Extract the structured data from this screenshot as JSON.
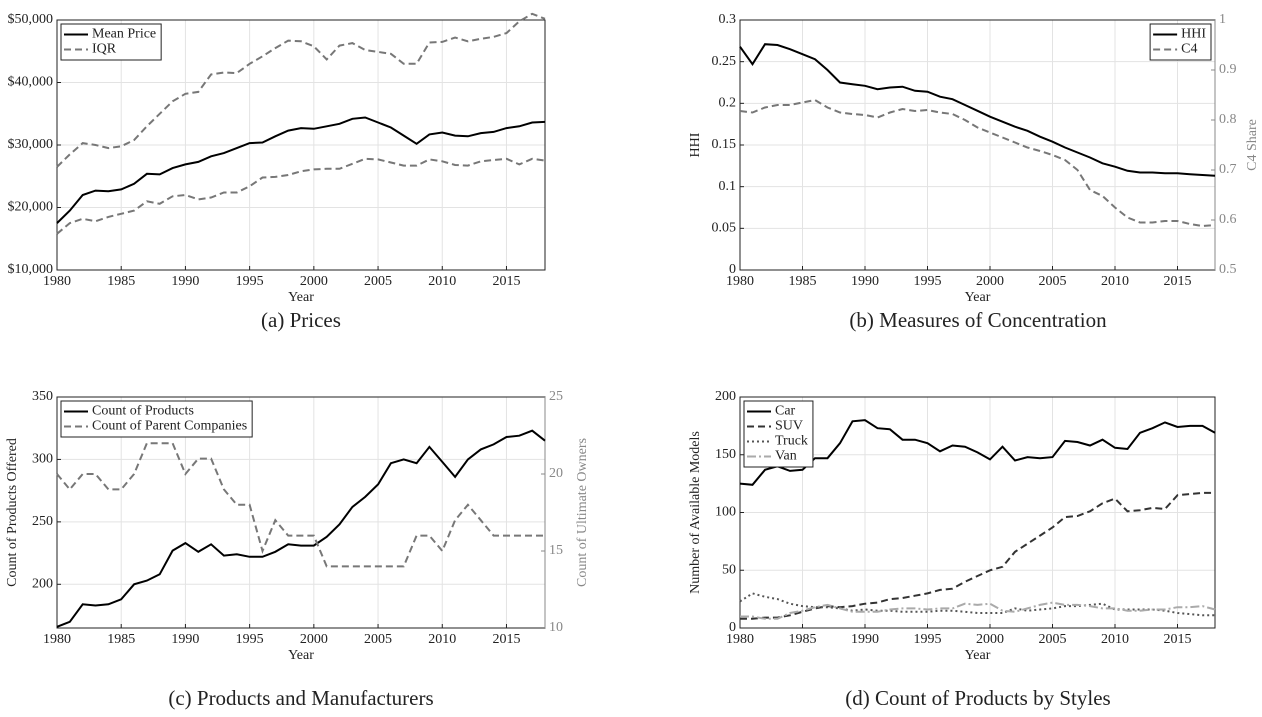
{
  "chart_data": [
    {
      "type": "line",
      "caption": "(a) Prices",
      "xlabel": "Year",
      "grid": true,
      "legend": "upper left",
      "x": [
        1980,
        1981,
        1982,
        1983,
        1984,
        1985,
        1986,
        1987,
        1988,
        1989,
        1990,
        1991,
        1992,
        1993,
        1994,
        1995,
        1996,
        1997,
        1998,
        1999,
        2000,
        2001,
        2002,
        2003,
        2004,
        2005,
        2006,
        2007,
        2008,
        2009,
        2010,
        2011,
        2012,
        2013,
        2014,
        2015,
        2016,
        2017,
        2018
      ],
      "xlim": [
        1980,
        2018
      ],
      "xticks": [
        1980,
        1985,
        1990,
        1995,
        2000,
        2005,
        2010,
        2015
      ],
      "ylim": [
        10000,
        50000
      ],
      "yticks": [
        {
          "value": 10000,
          "label": "$10,000"
        },
        {
          "value": 20000,
          "label": "$20,000"
        },
        {
          "value": 30000,
          "label": "$30,000"
        },
        {
          "value": 40000,
          "label": "$40,000"
        },
        {
          "value": 50000,
          "label": "$50,000"
        }
      ],
      "series": [
        {
          "name": "Mean Price",
          "color": "#000000",
          "style": "solid",
          "values": [
            17500,
            19500,
            22000,
            22700,
            22600,
            22900,
            23800,
            25400,
            25300,
            26300,
            26900,
            27300,
            28200,
            28700,
            29500,
            30300,
            30400,
            31400,
            32300,
            32700,
            32600,
            33000,
            33400,
            34200,
            34400,
            33600,
            32800,
            31500,
            30200,
            31700,
            32000,
            31500,
            31400,
            31900,
            32100,
            32700,
            33000,
            33600,
            33700
          ]
        },
        {
          "name": "IQR",
          "color": "#777777",
          "style": "dashed",
          "upper": [
            26500,
            28500,
            30300,
            30000,
            29500,
            29800,
            30800,
            33000,
            35000,
            37000,
            38200,
            38500,
            41300,
            41600,
            41500,
            43000,
            44200,
            45500,
            46700,
            46600,
            45800,
            43700,
            45900,
            46300,
            45200,
            44900,
            44600,
            43000,
            43000,
            46400,
            46500,
            47200,
            46600,
            47000,
            47300,
            47900,
            49800,
            51000,
            50200
          ],
          "lower": [
            15800,
            17500,
            18200,
            17800,
            18500,
            19000,
            19500,
            21000,
            20600,
            21800,
            22000,
            21300,
            21600,
            22400,
            22400,
            23400,
            24800,
            24900,
            25200,
            25800,
            26100,
            26200,
            26200,
            27000,
            27800,
            27700,
            27200,
            26700,
            26700,
            27700,
            27400,
            26800,
            26700,
            27400,
            27600,
            27800,
            26900,
            27800,
            27500
          ]
        }
      ]
    },
    {
      "type": "line",
      "caption": "(b) Measures of Concentration",
      "xlabel": "Year",
      "ylabel": "HHI",
      "y2label": "C4 Share",
      "grid": true,
      "legend": "upper right",
      "x": [
        1980,
        1981,
        1982,
        1983,
        1984,
        1985,
        1986,
        1987,
        1988,
        1989,
        1990,
        1991,
        1992,
        1993,
        1994,
        1995,
        1996,
        1997,
        1998,
        1999,
        2000,
        2001,
        2002,
        2003,
        2004,
        2005,
        2006,
        2007,
        2008,
        2009,
        2010,
        2011,
        2012,
        2013,
        2014,
        2015,
        2016,
        2017,
        2018
      ],
      "xlim": [
        1980,
        2018
      ],
      "xticks": [
        1980,
        1985,
        1990,
        1995,
        2000,
        2005,
        2010,
        2015
      ],
      "ylim": [
        0,
        0.3
      ],
      "yticks": [
        0,
        0.05,
        0.1,
        0.15,
        0.2,
        0.25,
        0.3
      ],
      "y2lim": [
        0.5,
        1
      ],
      "y2ticks": [
        0.5,
        0.6,
        0.7,
        0.8,
        0.9,
        1
      ],
      "series": [
        {
          "name": "HHI",
          "color": "#000000",
          "style": "solid",
          "values": [
            0.268,
            0.247,
            0.271,
            0.27,
            0.265,
            0.259,
            0.253,
            0.24,
            0.225,
            0.223,
            0.221,
            0.217,
            0.219,
            0.22,
            0.215,
            0.214,
            0.208,
            0.205,
            0.198,
            0.191,
            0.184,
            0.178,
            0.172,
            0.167,
            0.16,
            0.154,
            0.147,
            0.141,
            0.135,
            0.128,
            0.124,
            0.119,
            0.117,
            0.117,
            0.116,
            0.116,
            0.115,
            0.114,
            0.113
          ]
        },
        {
          "name": "C4",
          "color": "#777777",
          "style": "dashed",
          "axis": "y2",
          "values": [
            0.818,
            0.815,
            0.825,
            0.83,
            0.83,
            0.835,
            0.84,
            0.825,
            0.815,
            0.812,
            0.81,
            0.805,
            0.815,
            0.822,
            0.818,
            0.82,
            0.815,
            0.812,
            0.8,
            0.785,
            0.775,
            0.765,
            0.755,
            0.745,
            0.738,
            0.73,
            0.72,
            0.7,
            0.66,
            0.648,
            0.625,
            0.605,
            0.595,
            0.595,
            0.598,
            0.598,
            0.592,
            0.588,
            0.59
          ]
        }
      ]
    },
    {
      "type": "line",
      "caption": "(c) Products and Manufacturers",
      "xlabel": "Year",
      "ylabel": "Count of Products Offered",
      "y2label": "Count of Ultimate Owners",
      "grid": true,
      "legend": "upper left",
      "x": [
        1980,
        1981,
        1982,
        1983,
        1984,
        1985,
        1986,
        1987,
        1988,
        1989,
        1990,
        1991,
        1992,
        1993,
        1994,
        1995,
        1996,
        1997,
        1998,
        1999,
        2000,
        2001,
        2002,
        2003,
        2004,
        2005,
        2006,
        2007,
        2008,
        2009,
        2010,
        2011,
        2012,
        2013,
        2014,
        2015,
        2016,
        2017,
        2018
      ],
      "xlim": [
        1980,
        2018
      ],
      "xticks": [
        1980,
        1985,
        1990,
        1995,
        2000,
        2005,
        2010,
        2015
      ],
      "ylim": [
        165,
        350
      ],
      "yticks": [
        200,
        250,
        300,
        350
      ],
      "y2lim": [
        10,
        25
      ],
      "y2ticks": [
        10,
        15,
        20,
        25
      ],
      "series": [
        {
          "name": "Count of Products",
          "color": "#000000",
          "style": "solid",
          "values": [
            166,
            170,
            184,
            183,
            184,
            188,
            200,
            203,
            208,
            227,
            233,
            226,
            232,
            223,
            224,
            222,
            222,
            226,
            232,
            231,
            231,
            238,
            248,
            262,
            270,
            280,
            297,
            300,
            297,
            310,
            298,
            286,
            300,
            308,
            312,
            318,
            319,
            323,
            315
          ]
        },
        {
          "name": "Count of Parent Companies",
          "color": "#777777",
          "style": "dashed",
          "axis": "y2",
          "values": [
            20,
            19,
            20,
            20,
            19,
            19,
            20,
            22,
            22,
            22,
            20,
            21,
            21,
            19,
            18,
            18,
            15,
            17,
            16,
            16,
            16,
            14,
            14,
            14,
            14,
            14,
            14,
            14,
            16,
            16,
            15,
            17,
            18,
            17,
            16,
            16,
            16,
            16,
            16
          ]
        }
      ]
    },
    {
      "type": "line",
      "caption": "(d) Count of Products by Styles",
      "xlabel": "Year",
      "ylabel": "Number of Available Models",
      "grid": true,
      "legend": "upper left",
      "x": [
        1980,
        1981,
        1982,
        1983,
        1984,
        1985,
        1986,
        1987,
        1988,
        1989,
        1990,
        1991,
        1992,
        1993,
        1994,
        1995,
        1996,
        1997,
        1998,
        1999,
        2000,
        2001,
        2002,
        2003,
        2004,
        2005,
        2006,
        2007,
        2008,
        2009,
        2010,
        2011,
        2012,
        2013,
        2014,
        2015,
        2016,
        2017,
        2018
      ],
      "xlim": [
        1980,
        2018
      ],
      "xticks": [
        1980,
        1985,
        1990,
        1995,
        2000,
        2005,
        2010,
        2015
      ],
      "ylim": [
        0,
        200
      ],
      "yticks": [
        0,
        50,
        100,
        150,
        200
      ],
      "series": [
        {
          "name": "Car",
          "color": "#000000",
          "style": "solid",
          "values": [
            125,
            124,
            137,
            140,
            136,
            137,
            147,
            147,
            160,
            179,
            180,
            173,
            172,
            163,
            163,
            160,
            153,
            158,
            157,
            152,
            146,
            157,
            145,
            148,
            147,
            148,
            162,
            161,
            158,
            163,
            156,
            155,
            169,
            173,
            178,
            174,
            175,
            175,
            169
          ]
        },
        {
          "name": "SUV",
          "color": "#333333",
          "style": "dashed",
          "values": [
            8,
            8,
            9,
            9,
            11,
            14,
            17,
            19,
            18,
            19,
            21,
            22,
            25,
            26,
            28,
            30,
            33,
            34,
            40,
            45,
            50,
            53,
            66,
            73,
            80,
            87,
            96,
            97,
            101,
            108,
            112,
            101,
            102,
            104,
            103,
            115,
            116,
            117,
            117
          ]
        },
        {
          "name": "Truck",
          "color": "#555555",
          "style": "dotted",
          "values": [
            23,
            30,
            27,
            25,
            21,
            19,
            18,
            18,
            17,
            15,
            16,
            15,
            15,
            14,
            14,
            14,
            15,
            15,
            14,
            13,
            13,
            13,
            17,
            15,
            16,
            17,
            19,
            19,
            20,
            21,
            16,
            16,
            16,
            16,
            15,
            13,
            12,
            11,
            11
          ]
        },
        {
          "name": "Van",
          "color": "#aaaaaa",
          "style": "dashdot",
          "values": [
            10,
            10,
            8,
            8,
            13,
            15,
            18,
            20,
            17,
            14,
            14,
            14,
            16,
            17,
            17,
            16,
            17,
            17,
            21,
            20,
            21,
            15,
            14,
            17,
            20,
            22,
            20,
            20,
            19,
            17,
            17,
            15,
            15,
            16,
            16,
            18,
            18,
            19,
            16
          ]
        }
      ]
    }
  ]
}
